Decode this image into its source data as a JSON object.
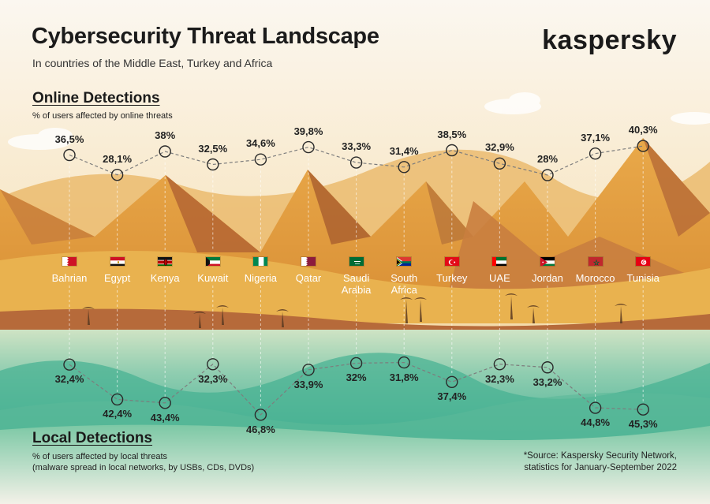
{
  "header": {
    "title": "Cybersecurity Threat Landscape",
    "subtitle": "In countries of the Middle East, Turkey and Africa",
    "brand": "kaspersky"
  },
  "online": {
    "title": "Online Detections",
    "note": "% of users affected by online threats"
  },
  "local": {
    "title": "Local Detections",
    "note_line1": "% of users affected by local threats",
    "note_line2": "(malware spread in local networks, by USBs, CDs, DVDs)"
  },
  "source": {
    "line1": "*Source: Kaspersky Security Network,",
    "line2": "statistics for January-September 2022"
  },
  "countries": [
    {
      "name": "Bahrian",
      "line2": "",
      "flag_icon": "bahrain-flag-icon"
    },
    {
      "name": "Egypt",
      "line2": "",
      "flag_icon": "egypt-flag-icon"
    },
    {
      "name": "Kenya",
      "line2": "",
      "flag_icon": "kenya-flag-icon"
    },
    {
      "name": "Kuwait",
      "line2": "",
      "flag_icon": "kuwait-flag-icon"
    },
    {
      "name": "Nigeria",
      "line2": "",
      "flag_icon": "nigeria-flag-icon"
    },
    {
      "name": "Qatar",
      "line2": "",
      "flag_icon": "qatar-flag-icon"
    },
    {
      "name": "Saudi",
      "line2": "Arabia",
      "flag_icon": "saudi-arabia-flag-icon"
    },
    {
      "name": "South",
      "line2": "Africa",
      "flag_icon": "south-africa-flag-icon"
    },
    {
      "name": "Turkey",
      "line2": "",
      "flag_icon": "turkey-flag-icon"
    },
    {
      "name": "UAE",
      "line2": "",
      "flag_icon": "uae-flag-icon"
    },
    {
      "name": "Jordan",
      "line2": "",
      "flag_icon": "jordan-flag-icon"
    },
    {
      "name": "Morocco",
      "line2": "",
      "flag_icon": "morocco-flag-icon"
    },
    {
      "name": "Tunisia",
      "line2": "",
      "flag_icon": "tunisia-flag-icon"
    }
  ],
  "colors": {
    "sky": "#fbf6ef",
    "desert_light": "#e8b454",
    "desert_dark": "#b86d37",
    "water": "#4fb89c",
    "line": "#8a8a8a"
  },
  "chart_data": {
    "type": "line",
    "categories": [
      "Bahrian",
      "Egypt",
      "Kenya",
      "Kuwait",
      "Nigeria",
      "Qatar",
      "Saudi Arabia",
      "South Africa",
      "Turkey",
      "UAE",
      "Jordan",
      "Morocco",
      "Tunisia"
    ],
    "series": [
      {
        "name": "Online Detections",
        "values": [
          36.5,
          28.1,
          38,
          32.5,
          34.6,
          39.8,
          33.3,
          31.4,
          38.5,
          32.9,
          28,
          37.1,
          40.3
        ],
        "labels": [
          "36,5%",
          "28,1%",
          "38%",
          "32,5%",
          "34,6%",
          "39,8%",
          "33,3%",
          "31,4%",
          "38,5%",
          "32,9%",
          "28%",
          "37,1%",
          "40,3%"
        ]
      },
      {
        "name": "Local Detections",
        "values": [
          32.4,
          42.4,
          43.4,
          32.3,
          46.8,
          33.9,
          32,
          31.8,
          37.4,
          32.3,
          33.2,
          44.8,
          45.3
        ],
        "labels": [
          "32,4%",
          "42,4%",
          "43,4%",
          "32,3%",
          "46,8%",
          "33,9%",
          "32%",
          "31,8%",
          "37,4%",
          "32,3%",
          "33,2%",
          "44,8%",
          "45,3%"
        ]
      }
    ],
    "unit": "%"
  }
}
